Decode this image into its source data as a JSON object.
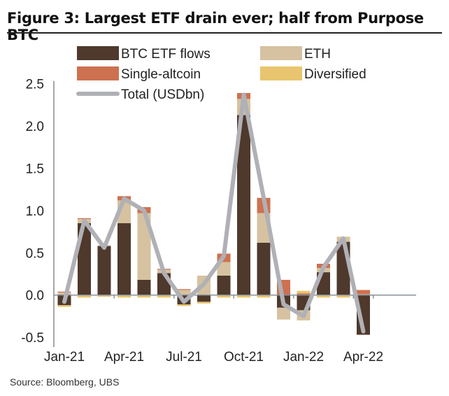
{
  "title": "Figure 3: Largest ETF drain ever; half from Purpose BTC",
  "source": "Source: Bloomberg, UBS",
  "chart_data": {
    "type": "bar",
    "stacked": true,
    "title": "Figure 3: Largest ETF drain ever; half from Purpose BTC",
    "categories": [
      "Jan-21",
      "Feb-21",
      "Mar-21",
      "Apr-21",
      "May-21",
      "Jun-21",
      "Jul-21",
      "Aug-21",
      "Sep-21",
      "Oct-21",
      "Nov-21",
      "Dec-21",
      "Jan-22",
      "Feb-22",
      "Mar-22",
      "Apr-22"
    ],
    "x_tick_labels": [
      "Jan-21",
      "Apr-21",
      "Jul-21",
      "Oct-21",
      "Jan-22",
      "Apr-22"
    ],
    "y_ticks": [
      "-0.5",
      "0.0",
      "0.5",
      "1.0",
      "1.5",
      "2.0",
      "2.5"
    ],
    "ylim": [
      -0.5,
      2.5
    ],
    "grid": false,
    "legend_position": "top",
    "series": [
      {
        "name": "BTC ETF flows",
        "color": "#4e392c",
        "values": [
          -0.12,
          0.85,
          0.58,
          0.85,
          0.18,
          0.26,
          -0.11,
          -0.08,
          0.23,
          2.13,
          0.62,
          -0.15,
          -0.18,
          0.27,
          0.63,
          -0.47
        ]
      },
      {
        "name": "ETH",
        "color": "#d6c2a0",
        "values": [
          0.03,
          0.05,
          0.01,
          0.27,
          0.79,
          0.04,
          0.06,
          0.23,
          0.16,
          0.19,
          0.35,
          -0.14,
          -0.12,
          0.05,
          0.06,
          0.01
        ]
      },
      {
        "name": "Single-altcoin",
        "color": "#cd7150",
        "values": [
          0.01,
          0.01,
          0.0,
          0.05,
          0.07,
          0.01,
          0.01,
          0.0,
          0.1,
          0.07,
          0.18,
          0.18,
          0.02,
          0.05,
          0.0,
          0.05
        ]
      },
      {
        "name": "Diversified",
        "color": "#e8c56e",
        "values": [
          -0.02,
          -0.03,
          -0.02,
          -0.03,
          -0.03,
          -0.03,
          -0.02,
          -0.02,
          -0.03,
          -0.03,
          -0.03,
          0.0,
          0.03,
          -0.03,
          -0.03,
          0.0
        ]
      },
      {
        "name": "Total (USDbn)",
        "type": "line",
        "color": "#b0b1b6",
        "values": [
          -0.08,
          0.88,
          0.56,
          1.14,
          1.0,
          0.26,
          -0.08,
          0.13,
          0.46,
          2.37,
          1.15,
          -0.11,
          -0.25,
          0.33,
          0.67,
          -0.43
        ]
      }
    ]
  }
}
